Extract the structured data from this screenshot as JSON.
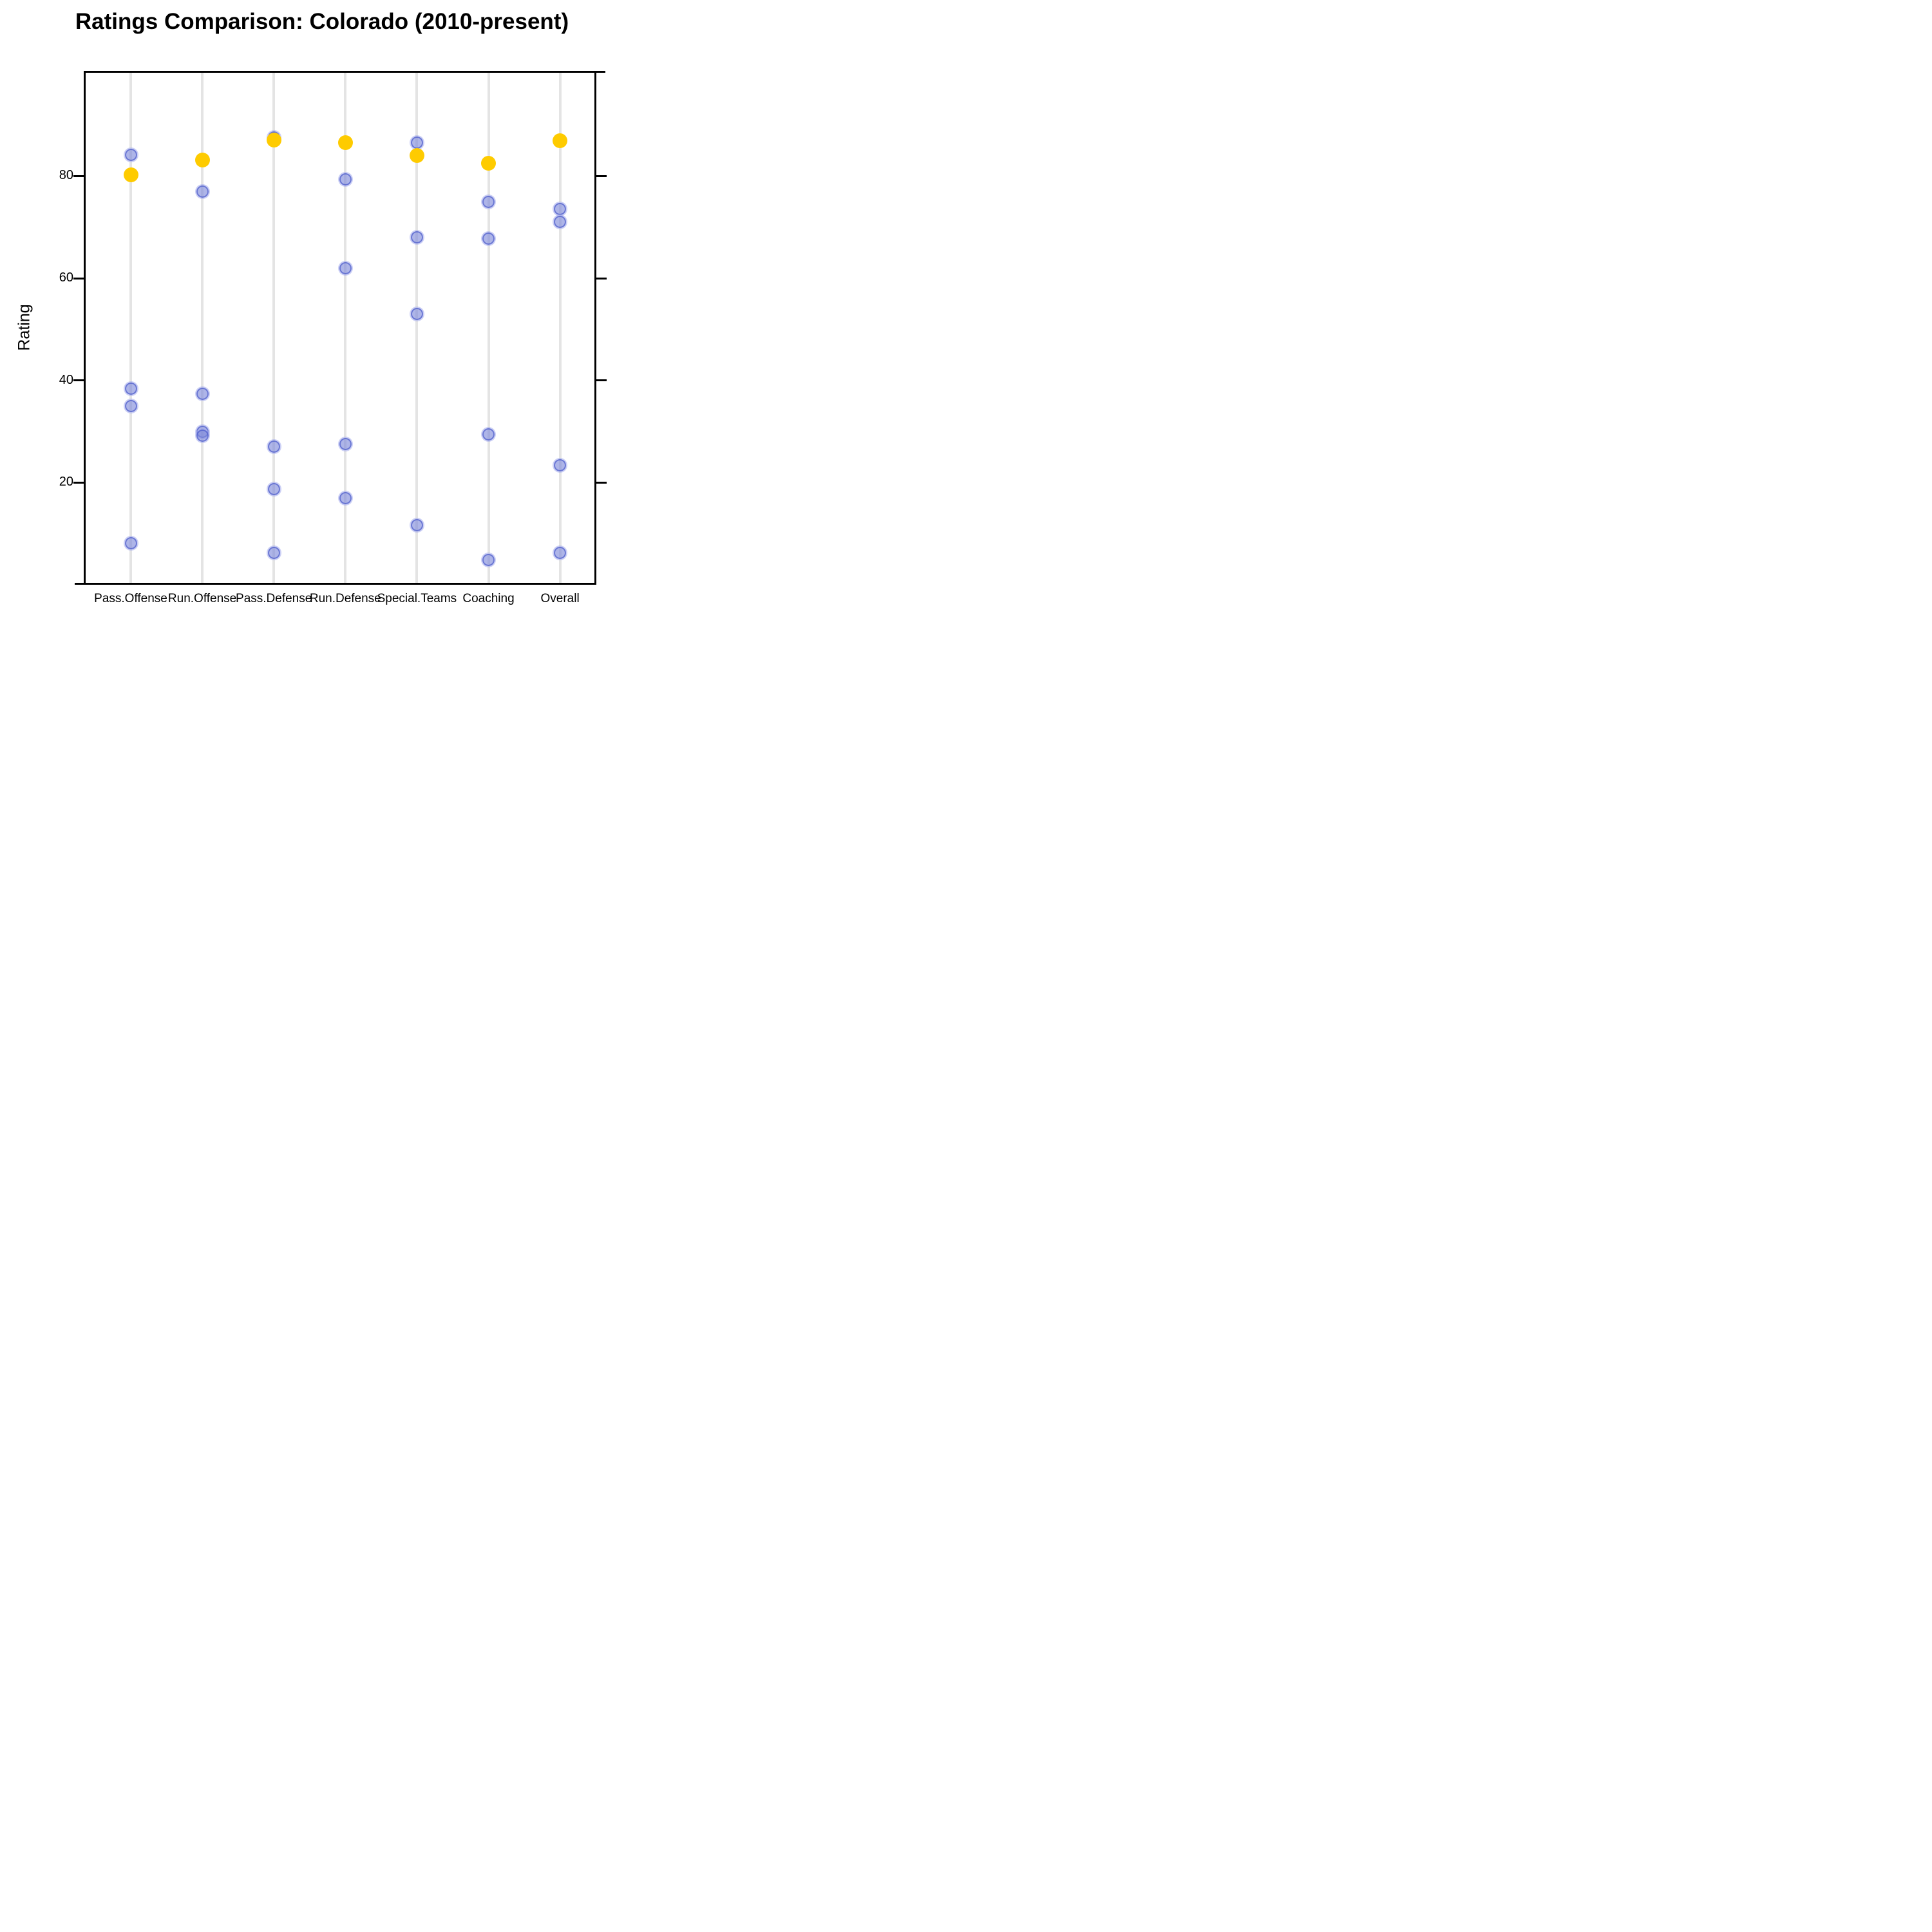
{
  "title": "Ratings Comparison: Colorado (2010-present)",
  "y_axis": {
    "label": "Rating",
    "tick_labels": [
      "80",
      "60",
      "40",
      "20"
    ]
  },
  "x_axis": {
    "tick_labels": [
      "Pass.Offense",
      "Run.Offense",
      "Pass.Defense",
      "Run.Defense",
      "Special.Teams",
      "Coaching",
      "Overall"
    ]
  },
  "colors": {
    "gold_marker": "#fecb00",
    "blue_marker_fill": "#a9b0e5",
    "blue_marker_ring": "#7b87dd",
    "gridline": "#e4e4e4",
    "axis": "#000000",
    "background": "#ffffff"
  },
  "chart_data": {
    "type": "scatter",
    "title": "Ratings Comparison: Colorado (2010-present)",
    "xlabel": "",
    "ylabel": "Rating",
    "ylim": [
      0,
      100
    ],
    "yticks": [
      20,
      40,
      60,
      80
    ],
    "grid": "vertical-category-gridlines",
    "legend_position": "none",
    "categories": [
      "Pass.Offense",
      "Run.Offense",
      "Pass.Defense",
      "Run.Defense",
      "Special.Teams",
      "Coaching",
      "Overall"
    ],
    "series": [
      {
        "name": "blue-points",
        "marker": "translucent-blue-circle",
        "color": "#7b87dd",
        "values_by_category": [
          [
            84.2,
            38.4,
            35.0,
            8.1
          ],
          [
            77.0,
            37.4,
            30.0,
            29.2
          ],
          [
            87.5,
            27.0,
            18.7,
            6.3
          ],
          [
            79.3,
            62.0,
            27.5,
            16.9
          ],
          [
            86.5,
            68.0,
            53.0,
            11.7
          ],
          [
            75.0,
            67.7,
            29.4,
            4.8
          ],
          [
            73.5,
            71.0,
            23.4,
            6.3
          ]
        ]
      },
      {
        "name": "gold-points",
        "marker": "solid-gold-circle",
        "color": "#fecb00",
        "values_by_category": [
          [
            80.3
          ],
          [
            83.2
          ],
          [
            87.0
          ],
          [
            86.6
          ],
          [
            84.0
          ],
          [
            82.5
          ],
          [
            86.9
          ]
        ]
      }
    ]
  }
}
